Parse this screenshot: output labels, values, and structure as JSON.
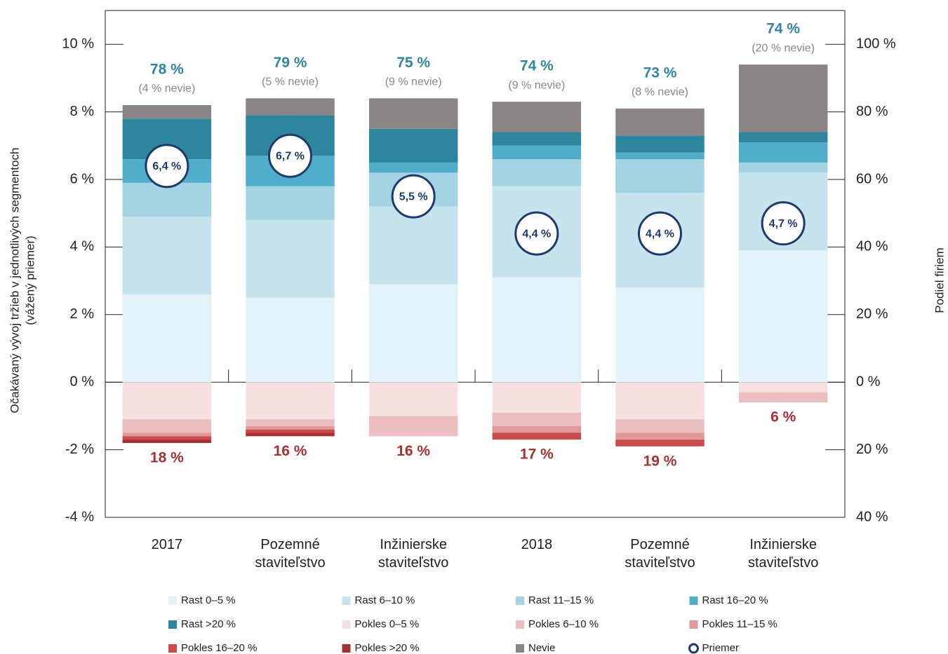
{
  "chart_data": {
    "type": "stacked_bar",
    "y_label_lines": [
      "Očakávaný vývoj tržieb v jednotlivých segmentoch",
      "(vážený priemer)"
    ],
    "y2_label": "Podiel firiem",
    "categories": [
      "2017",
      "Pozemné staviteľstvo",
      "Inžinierske staviteľstvo",
      "2018",
      "Pozemné staviteľstvo",
      "Inžinierske staviteľstvo"
    ],
    "ylim": [
      -4,
      11
    ],
    "yticks": [
      {
        "value": -4,
        "label": "-4 %"
      },
      {
        "value": -2,
        "label": "-2 %"
      },
      {
        "value": 0,
        "label": "0 %"
      },
      {
        "value": 2,
        "label": "2 %"
      },
      {
        "value": 4,
        "label": "4 %"
      },
      {
        "value": 6,
        "label": "6 %"
      },
      {
        "value": 8,
        "label": "8 %"
      },
      {
        "value": 10,
        "label": "10 %"
      }
    ],
    "y2lim": [
      -40,
      110
    ],
    "y2ticks": [
      {
        "value": -40,
        "label": "40 %"
      },
      {
        "value": -20,
        "label": "20 %"
      },
      {
        "value": 0,
        "label": "0 %"
      },
      {
        "value": 20,
        "label": "20 %"
      },
      {
        "value": 40,
        "label": "40 %"
      },
      {
        "value": 60,
        "label": "60 %"
      },
      {
        "value": 80,
        "label": "80 %"
      },
      {
        "value": 100,
        "label": "100 %"
      }
    ],
    "series": [
      {
        "name": "Rast 0–5 %",
        "color": "#e3f2f9",
        "axis": "y2",
        "values": [
          26,
          25,
          29,
          31,
          28,
          39
        ]
      },
      {
        "name": "Rast 6–10 %",
        "color": "#c5e4ee",
        "axis": "y2",
        "values": [
          23,
          23,
          23,
          27,
          28,
          23
        ]
      },
      {
        "name": "Rast 11–15 %",
        "color": "#a4d3e3",
        "axis": "y2",
        "values": [
          10,
          10,
          10,
          8,
          10,
          3
        ]
      },
      {
        "name": "Rast 16–20 %",
        "color": "#50aecb",
        "axis": "y2",
        "values": [
          7,
          9,
          3,
          4,
          2,
          6
        ]
      },
      {
        "name": "Rast >20 %",
        "color": "#2e869e",
        "axis": "y2",
        "values": [
          12,
          12,
          10,
          4,
          5,
          3
        ]
      },
      {
        "name": "Pokles 0–5 %",
        "color": "#f6e0e0",
        "axis": "y2",
        "values": [
          -11,
          -11,
          -10,
          -9,
          -11,
          -3
        ]
      },
      {
        "name": "Pokles 6–10 %",
        "color": "#ebbfc0",
        "axis": "y2",
        "values": [
          -4,
          -2,
          -6,
          -4,
          -4,
          -3
        ]
      },
      {
        "name": "Pokles 11–15 %",
        "color": "#df9999",
        "axis": "y2",
        "values": [
          -1,
          -1,
          0,
          -2,
          -2,
          0
        ]
      },
      {
        "name": "Pokles 16–20 %",
        "color": "#cd4a4a",
        "axis": "y2",
        "values": [
          -1,
          -1,
          0,
          -2,
          -2,
          0
        ]
      },
      {
        "name": "Pokles >20 %",
        "color": "#a8302e",
        "axis": "y2",
        "values": [
          -1,
          -1,
          0,
          0,
          0,
          0
        ]
      },
      {
        "name": "Nevie",
        "color": "#8a8584",
        "axis": "y2",
        "values": [
          4,
          5,
          9,
          9,
          8,
          20
        ]
      },
      {
        "name": "Priemer",
        "color": "#1e3a6e",
        "axis": "y",
        "values": [
          6.4,
          6.7,
          5.5,
          4.4,
          4.4,
          4.7
        ],
        "value_labels": [
          "6,4 %",
          "6,7 %",
          "5,5 %",
          "4,4 %",
          "4,4 %",
          "4,7 %"
        ]
      }
    ],
    "growth_labels": [
      "78 %",
      "79 %",
      "75 %",
      "74 %",
      "73 %",
      "74 %"
    ],
    "nevie_labels": [
      "(4 % nevie)",
      "(5 % nevie)",
      "(9 % nevie)",
      "(9 % nevie)",
      "(8 % nevie)",
      "(20 % nevie)"
    ],
    "decline_labels": [
      "18 %",
      "16 %",
      "16 %",
      "17 %",
      "19 %",
      "6 %"
    ]
  }
}
